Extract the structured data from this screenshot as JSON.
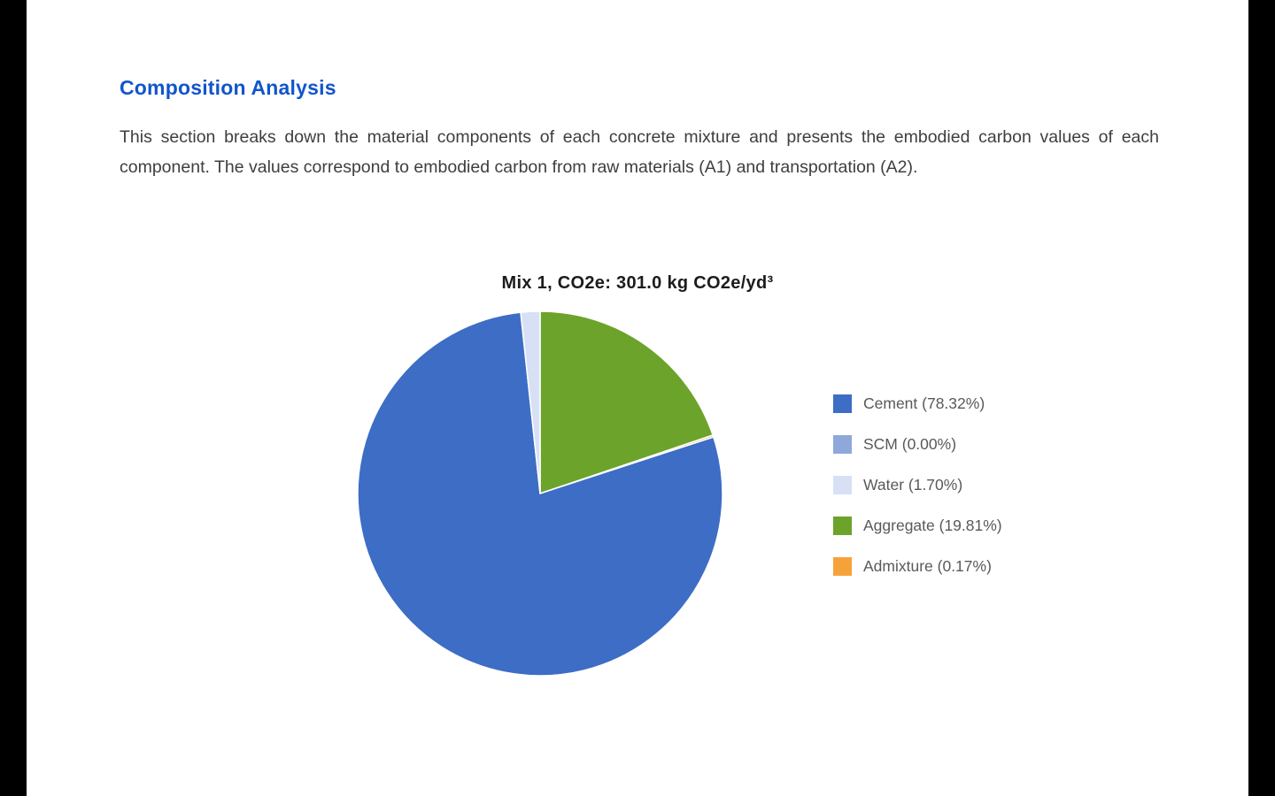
{
  "page": {
    "heading": "Composition Analysis",
    "description": "This section breaks down the material components of each concrete mixture and presents the embodied carbon values of each component. The values correspond to embodied carbon from raw materials (A1) and transportation (A2)."
  },
  "chart_data": {
    "type": "pie",
    "title": "Mix 1, CO2e: 301.0 kg CO2e/yd³",
    "legend_position": "right",
    "start_angle_deg": 0,
    "direction": "clockwise-from-top",
    "draw_order": [
      3,
      4,
      0,
      1,
      2
    ],
    "slices": [
      {
        "id": "cement",
        "name": "Cement",
        "pct": 78.32,
        "label": "Cement (78.32%)",
        "color": "#3D6DC5"
      },
      {
        "id": "scm",
        "name": "SCM",
        "pct": 0.0,
        "label": "SCM (0.00%)",
        "color": "#8FA8DB"
      },
      {
        "id": "water",
        "name": "Water",
        "pct": 1.7,
        "label": "Water (1.70%)",
        "color": "#D7E0F5"
      },
      {
        "id": "aggregate",
        "name": "Aggregate",
        "pct": 19.81,
        "label": "Aggregate (19.81%)",
        "color": "#6CA32A"
      },
      {
        "id": "admixture",
        "name": "Admixture",
        "pct": 0.17,
        "label": "Admixture (0.17%)",
        "color": "#F6A23B"
      }
    ]
  }
}
